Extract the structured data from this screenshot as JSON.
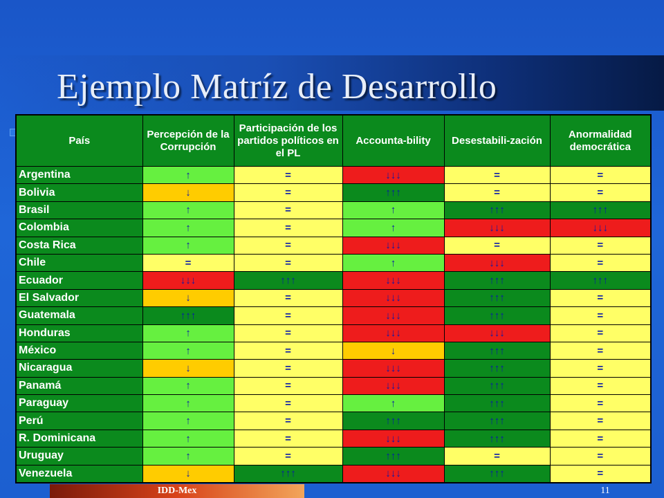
{
  "slide": {
    "title": "Ejemplo Matríz de Desarrollo",
    "footer": "IDD-Mex",
    "page_number": "11"
  },
  "colors": {
    "up": "#66f040",
    "equal": "#ffff66",
    "down": "#ffcc00",
    "down3": "#ee1c1c",
    "up3": "#0b8a1d",
    "header": "#0b8a1d"
  },
  "table": {
    "headers": [
      "País",
      "Percepción de la Corrupción",
      "Participación de los partidos políticos en el PL",
      "Accounta-bility",
      "Desestabili-zación",
      "Anormalidad democrática"
    ],
    "rows": [
      {
        "country": "Argentina",
        "cells": [
          "up",
          "eq",
          "dn3",
          "eq",
          "eq"
        ]
      },
      {
        "country": "Bolivia",
        "cells": [
          "dn",
          "eq",
          "up3",
          "eq",
          "eq"
        ]
      },
      {
        "country": "Brasil",
        "cells": [
          "up",
          "eq",
          "up",
          "up3",
          "up3"
        ]
      },
      {
        "country": "Colombia",
        "cells": [
          "up",
          "eq",
          "up",
          "dn3",
          "dn3"
        ]
      },
      {
        "country": "Costa Rica",
        "cells": [
          "up",
          "eq",
          "dn3",
          "eq",
          "eq"
        ]
      },
      {
        "country": "Chile",
        "cells": [
          "eq",
          "eq",
          "up",
          "dn3",
          "eq"
        ]
      },
      {
        "country": "Ecuador",
        "cells": [
          "dn3",
          "up3",
          "dn3",
          "up3",
          "up3"
        ]
      },
      {
        "country": "El Salvador",
        "cells": [
          "dn",
          "eq",
          "dn3",
          "up3",
          "eq"
        ]
      },
      {
        "country": "Guatemala",
        "cells": [
          "up3",
          "eq",
          "dn3",
          "up3",
          "eq"
        ]
      },
      {
        "country": "Honduras",
        "cells": [
          "up",
          "eq",
          "dn3",
          "dn3",
          "eq"
        ]
      },
      {
        "country": "México",
        "cells": [
          "up",
          "eq",
          "dn",
          "up3",
          "eq"
        ]
      },
      {
        "country": "Nicaragua",
        "cells": [
          "dn",
          "eq",
          "dn3",
          "up3",
          "eq"
        ]
      },
      {
        "country": "Panamá",
        "cells": [
          "up",
          "eq",
          "dn3",
          "up3",
          "eq"
        ]
      },
      {
        "country": "Paraguay",
        "cells": [
          "up",
          "eq",
          "up",
          "up3",
          "eq"
        ]
      },
      {
        "country": "Perú",
        "cells": [
          "up",
          "eq",
          "up3",
          "up3",
          "eq"
        ]
      },
      {
        "country": "R. Dominicana",
        "cells": [
          "up",
          "eq",
          "dn3",
          "up3",
          "eq"
        ]
      },
      {
        "country": "Uruguay",
        "cells": [
          "up",
          "eq",
          "up3",
          "eq",
          "eq"
        ]
      },
      {
        "country": "Venezuela",
        "cells": [
          "dn",
          "up3",
          "dn3",
          "up3",
          "eq"
        ]
      }
    ]
  },
  "symbols": {
    "up": "↑",
    "eq": "=",
    "dn": "↓",
    "dn3": "↓↓↓",
    "up3": "↑↑↑"
  }
}
